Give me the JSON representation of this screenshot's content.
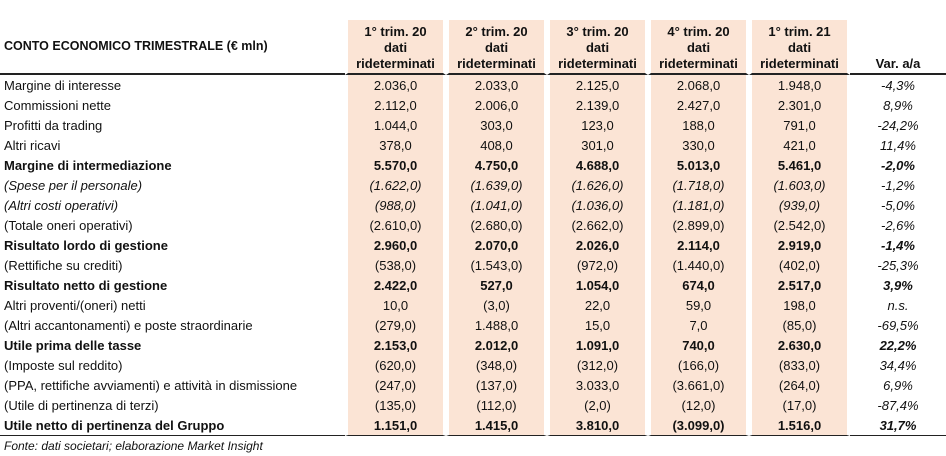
{
  "header": {
    "title": "CONTO ECONOMICO TRIMESTRALE (€ mln)",
    "columns": [
      [
        "1° trim. 20",
        "dati",
        "rideterminati"
      ],
      [
        "2° trim. 20",
        "dati",
        "rideterminati"
      ],
      [
        "3° trim. 20",
        "dati",
        "rideterminati"
      ],
      [
        "4° trim. 20",
        "dati",
        "rideterminati"
      ],
      [
        "1° trim. 21",
        "dati",
        "rideterminati"
      ],
      [
        "Var. a/a"
      ]
    ]
  },
  "table": {
    "rows": [
      {
        "label": "Margine di interesse",
        "values": [
          "2.036,0",
          "2.033,0",
          "2.125,0",
          "2.068,0",
          "1.948,0",
          "-4,3%"
        ]
      },
      {
        "label": "Commissioni nette",
        "values": [
          "2.112,0",
          "2.006,0",
          "2.139,0",
          "2.427,0",
          "2.301,0",
          "8,9%"
        ]
      },
      {
        "label": "Profitti da trading",
        "values": [
          "1.044,0",
          "303,0",
          "123,0",
          "188,0",
          "791,0",
          "-24,2%"
        ]
      },
      {
        "label": "Altri ricavi",
        "values": [
          "378,0",
          "408,0",
          "301,0",
          "330,0",
          "421,0",
          "11,4%"
        ]
      },
      {
        "label": "Margine di intermediazione",
        "bold": true,
        "values": [
          "5.570,0",
          "4.750,0",
          "4.688,0",
          "5.013,0",
          "5.461,0",
          "-2,0%"
        ]
      },
      {
        "label": "(Spese per il personale)",
        "italic": true,
        "values": [
          "(1.622,0)",
          "(1.639,0)",
          "(1.626,0)",
          "(1.718,0)",
          "(1.603,0)",
          "-1,2%"
        ]
      },
      {
        "label": "(Altri costi operativi)",
        "italic": true,
        "values": [
          "(988,0)",
          "(1.041,0)",
          "(1.036,0)",
          "(1.181,0)",
          "(939,0)",
          "-5,0%"
        ]
      },
      {
        "label": "(Totale oneri operativi)",
        "values": [
          "(2.610,0)",
          "(2.680,0)",
          "(2.662,0)",
          "(2.899,0)",
          "(2.542,0)",
          "-2,6%"
        ]
      },
      {
        "label": "Risultato lordo di gestione",
        "bold": true,
        "values": [
          "2.960,0",
          "2.070,0",
          "2.026,0",
          "2.114,0",
          "2.919,0",
          "-1,4%"
        ]
      },
      {
        "label": "(Rettifiche su crediti)",
        "values": [
          "(538,0)",
          "(1.543,0)",
          "(972,0)",
          "(1.440,0)",
          "(402,0)",
          "-25,3%"
        ]
      },
      {
        "label": "Risultato netto di gestione",
        "bold": true,
        "values": [
          "2.422,0",
          "527,0",
          "1.054,0",
          "674,0",
          "2.517,0",
          "3,9%"
        ]
      },
      {
        "label": "Altri proventi/(oneri) netti",
        "values": [
          "10,0",
          "(3,0)",
          "22,0",
          "59,0",
          "198,0",
          "n.s."
        ]
      },
      {
        "label": "(Altri accantonamenti) e poste straordinarie",
        "values": [
          "(279,0)",
          "1.488,0",
          "15,0",
          "7,0",
          "(85,0)",
          "-69,5%"
        ]
      },
      {
        "label": "Utile prima delle tasse",
        "bold": true,
        "values": [
          "2.153,0",
          "2.012,0",
          "1.091,0",
          "740,0",
          "2.630,0",
          "22,2%"
        ]
      },
      {
        "label": "(Imposte sul reddito)",
        "values": [
          "(620,0)",
          "(348,0)",
          "(312,0)",
          "(166,0)",
          "(833,0)",
          "34,4%"
        ]
      },
      {
        "label": "(PPA, rettifiche avviamenti) e attività in dismissione",
        "values": [
          "(247,0)",
          "(137,0)",
          "3.033,0",
          "(3.661,0)",
          "(264,0)",
          "6,9%"
        ]
      },
      {
        "label": "(Utile di pertinenza di terzi)",
        "values": [
          "(135,0)",
          "(112,0)",
          "(2,0)",
          "(12,0)",
          "(17,0)",
          "-87,4%"
        ]
      },
      {
        "label": "Utile netto di pertinenza del Gruppo",
        "bold": true,
        "values": [
          "1.151,0",
          "1.415,0",
          "3.810,0",
          "(3.099,0)",
          "1.516,0",
          "31,7%"
        ]
      }
    ]
  },
  "footer": {
    "source": "Fonte: dati societari; elaborazione Market Insight"
  }
}
